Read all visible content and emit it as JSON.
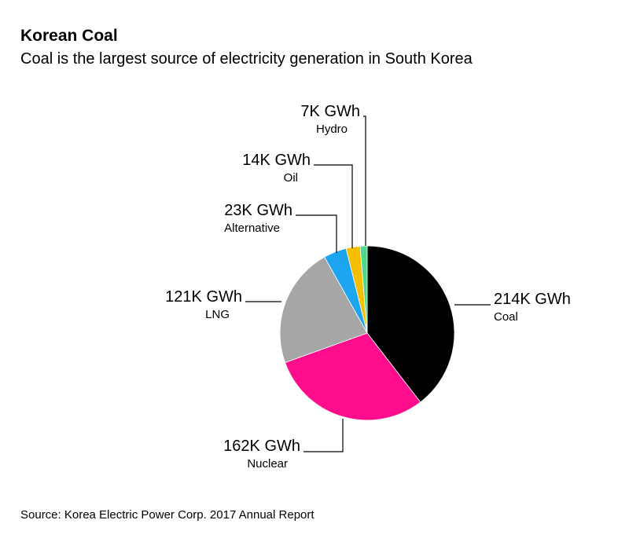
{
  "chart_data": {
    "type": "pie",
    "title": "Korean Coal",
    "subtitle": "Coal is the largest source of electricity generation in South Korea",
    "categories": [
      "Coal",
      "Nuclear",
      "LNG",
      "Alternative",
      "Oil",
      "Hydro"
    ],
    "values": [
      214,
      162,
      121,
      23,
      14,
      7
    ],
    "value_labels": [
      "214K GWh",
      "162K GWh",
      "121K GWh",
      "23K GWh",
      "14K GWh",
      "7K GWh"
    ],
    "colors": [
      "#000000",
      "#ff0d8c",
      "#a6a6a6",
      "#1ea5f0",
      "#f5bf00",
      "#4cd98b"
    ],
    "source": "Source: Korea Electric Power Corp. 2017 Annual Report"
  }
}
